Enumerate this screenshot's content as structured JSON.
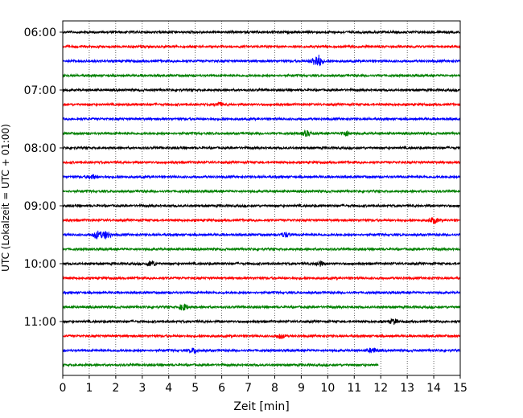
{
  "chart_data": {
    "type": "line",
    "title": "",
    "xlabel": "Zeit  [min]",
    "ylabel": "UTC (Lokalzeit = UTC + 01:00)",
    "xlim": [
      0,
      15
    ],
    "x_ticks": [
      "0",
      "1",
      "2",
      "3",
      "4",
      "5",
      "6",
      "7",
      "8",
      "9",
      "10",
      "11",
      "12",
      "13",
      "14",
      "15"
    ],
    "y_tick_labels": [
      "06:00",
      "07:00",
      "08:00",
      "09:00",
      "10:00",
      "11:00"
    ],
    "grid": "vertical dotted at each minute",
    "legend": "none",
    "series_colors": [
      "#000000",
      "#ff0000",
      "#0000ff",
      "#008000"
    ],
    "series": [
      {
        "start": "06:00",
        "duration_min": 15,
        "color": "#000000"
      },
      {
        "start": "06:15",
        "duration_min": 15,
        "color": "#ff0000"
      },
      {
        "start": "06:30",
        "duration_min": 15,
        "color": "#0000ff"
      },
      {
        "start": "06:45",
        "duration_min": 15,
        "color": "#008000"
      },
      {
        "start": "07:00",
        "duration_min": 15,
        "color": "#000000"
      },
      {
        "start": "07:15",
        "duration_min": 15,
        "color": "#ff0000"
      },
      {
        "start": "07:30",
        "duration_min": 15,
        "color": "#0000ff"
      },
      {
        "start": "07:45",
        "duration_min": 15,
        "color": "#008000"
      },
      {
        "start": "08:00",
        "duration_min": 15,
        "color": "#000000"
      },
      {
        "start": "08:15",
        "duration_min": 15,
        "color": "#ff0000"
      },
      {
        "start": "08:30",
        "duration_min": 15,
        "color": "#0000ff"
      },
      {
        "start": "08:45",
        "duration_min": 15,
        "color": "#008000"
      },
      {
        "start": "09:00",
        "duration_min": 15,
        "color": "#000000"
      },
      {
        "start": "09:15",
        "duration_min": 15,
        "color": "#ff0000"
      },
      {
        "start": "09:30",
        "duration_min": 15,
        "color": "#0000ff"
      },
      {
        "start": "09:45",
        "duration_min": 15,
        "color": "#008000"
      },
      {
        "start": "10:00",
        "duration_min": 15,
        "color": "#000000"
      },
      {
        "start": "10:15",
        "duration_min": 15,
        "color": "#ff0000"
      },
      {
        "start": "10:30",
        "duration_min": 15,
        "color": "#0000ff"
      },
      {
        "start": "10:45",
        "duration_min": 15,
        "color": "#008000"
      },
      {
        "start": "11:00",
        "duration_min": 15,
        "color": "#000000"
      },
      {
        "start": "11:15",
        "duration_min": 15,
        "color": "#ff0000"
      },
      {
        "start": "11:30",
        "duration_min": 15,
        "color": "#0000ff"
      },
      {
        "start": "11:45",
        "duration_min": 11.9,
        "color": "#008000"
      }
    ],
    "events": [
      {
        "trace": "06:30",
        "x": 9.65,
        "amplitude": 6.5
      },
      {
        "trace": "06:30",
        "x": 9.5,
        "amplitude": 3
      },
      {
        "trace": "07:15",
        "x": 5.9,
        "amplitude": 2.5
      },
      {
        "trace": "07:45",
        "x": 9.2,
        "amplitude": 3
      },
      {
        "trace": "07:45",
        "x": 10.7,
        "amplitude": 3
      },
      {
        "trace": "08:30",
        "x": 1.1,
        "amplitude": 2.5
      },
      {
        "trace": "09:15",
        "x": 14.0,
        "amplitude": 3.5
      },
      {
        "trace": "09:30",
        "x": 1.3,
        "amplitude": 4.5
      },
      {
        "trace": "09:30",
        "x": 1.65,
        "amplitude": 5
      },
      {
        "trace": "09:30",
        "x": 8.4,
        "amplitude": 3
      },
      {
        "trace": "10:00",
        "x": 3.35,
        "amplitude": 3.5
      },
      {
        "trace": "10:00",
        "x": 9.7,
        "amplitude": 3
      },
      {
        "trace": "10:45",
        "x": 4.55,
        "amplitude": 4
      },
      {
        "trace": "11:00",
        "x": 12.5,
        "amplitude": 3
      },
      {
        "trace": "11:15",
        "x": 8.2,
        "amplitude": 3
      },
      {
        "trace": "11:30",
        "x": 4.95,
        "amplitude": 3
      },
      {
        "trace": "11:30",
        "x": 11.7,
        "amplitude": 3
      }
    ]
  }
}
